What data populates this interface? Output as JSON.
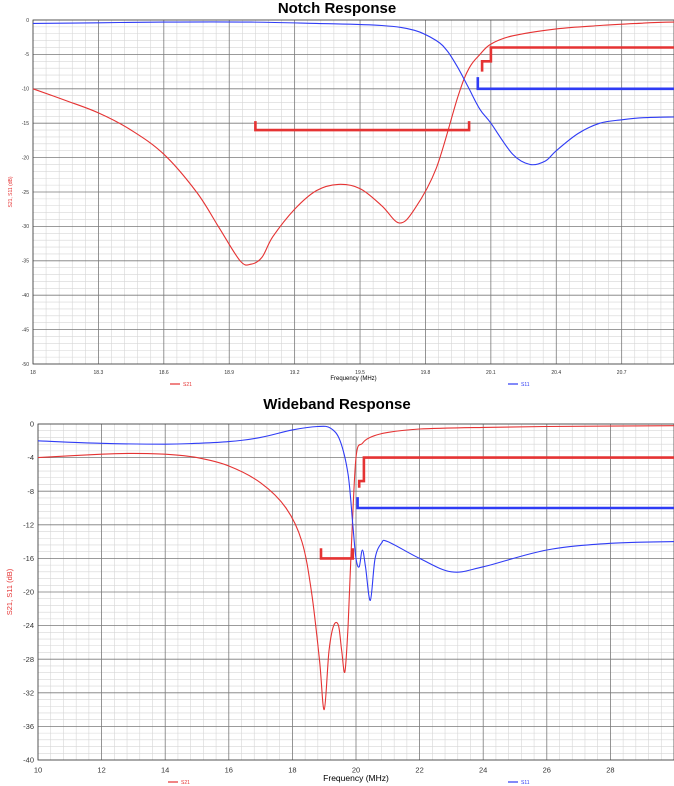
{
  "colors": {
    "s21": "#e53333",
    "s11": "#2f3cf5",
    "grid_major": "#7a7a7a",
    "grid_minor": "#d6d6d6"
  },
  "chart_data": [
    {
      "type": "line",
      "title": "Notch Response",
      "xlabel": "Frequency (MHz)",
      "ylabel": "S21, S11 (dB)",
      "xlim": [
        18,
        20.94
      ],
      "ylim": [
        -50,
        0
      ],
      "x_ticks": [
        "18",
        "18.3",
        "18.6",
        "18.9",
        "19.2",
        "19.5",
        "19.8",
        "20.1",
        "20.4",
        "20.7"
      ],
      "y_ticks": [
        "0",
        "-5",
        "-10",
        "-15",
        "-20",
        "-25",
        "-30",
        "-35",
        "-40",
        "-45",
        "-50"
      ],
      "grid": true,
      "legend": [
        "S21",
        "S11"
      ],
      "series": [
        {
          "name": "S21",
          "color": "#e53333",
          "x": [
            18.0,
            18.15,
            18.3,
            18.45,
            18.6,
            18.75,
            18.85,
            18.95,
            19.0,
            19.05,
            19.1,
            19.2,
            19.3,
            19.4,
            19.5,
            19.6,
            19.68,
            19.75,
            19.85,
            19.95,
            20.0,
            20.05,
            20.1,
            20.2,
            20.4,
            20.6,
            20.8,
            20.94
          ],
          "y": [
            -10,
            -11.7,
            -13.5,
            -16,
            -19.5,
            -25,
            -30,
            -35,
            -35.5,
            -34.5,
            -31.5,
            -27.5,
            -24.8,
            -23.9,
            -24.5,
            -27,
            -29.5,
            -27.5,
            -21.5,
            -11,
            -7,
            -5,
            -3.5,
            -2.3,
            -1.3,
            -0.8,
            -0.45,
            -0.3
          ]
        },
        {
          "name": "S11",
          "color": "#2f3cf5",
          "x": [
            18.0,
            18.3,
            18.6,
            19.0,
            19.3,
            19.6,
            19.75,
            19.85,
            19.9,
            19.95,
            20.0,
            20.05,
            20.1,
            20.2,
            20.28,
            20.35,
            20.4,
            20.5,
            20.6,
            20.7,
            20.8,
            20.94
          ],
          "y": [
            -0.5,
            -0.4,
            -0.3,
            -0.3,
            -0.5,
            -0.8,
            -1.5,
            -3,
            -4.5,
            -7,
            -10,
            -13,
            -15,
            -19.5,
            -21,
            -20.5,
            -19,
            -16.5,
            -15,
            -14.5,
            -14.2,
            -14.1
          ]
        }
      ],
      "spec_masks": [
        {
          "color": "#e53333",
          "x": [
            19.02,
            19.02,
            20.0,
            20.0
          ],
          "y": [
            -14.7,
            -16,
            -16,
            -14.7
          ]
        },
        {
          "color": "#e53333",
          "x": [
            20.06,
            20.06,
            20.1,
            20.1,
            20.94
          ],
          "y": [
            -7.5,
            -6,
            -6,
            -4,
            -4
          ]
        },
        {
          "color": "#2f3cf5",
          "x": [
            20.04,
            20.04,
            20.94
          ],
          "y": [
            -8.3,
            -10,
            -10
          ]
        }
      ]
    },
    {
      "type": "line",
      "title": "Wideband Response",
      "xlabel": "Frequency (MHz)",
      "ylabel": "S21, S11 (dB)",
      "xlim": [
        10,
        30
      ],
      "ylim": [
        -40,
        0
      ],
      "x_ticks": [
        "10",
        "12",
        "14",
        "16",
        "18",
        "20",
        "22",
        "24",
        "26",
        "28"
      ],
      "y_ticks": [
        "0",
        "-4",
        "-8",
        "-12",
        "-16",
        "-20",
        "-24",
        "-28",
        "-32",
        "-36",
        "-40"
      ],
      "grid": true,
      "legend": [
        "S21",
        "S11"
      ],
      "series": [
        {
          "name": "S21",
          "color": "#e53333",
          "x": [
            10,
            12,
            13,
            14,
            15,
            16,
            17,
            17.8,
            18.3,
            18.6,
            18.85,
            19.0,
            19.15,
            19.3,
            19.45,
            19.55,
            19.65,
            19.75,
            19.85,
            20.0,
            20.2,
            20.5,
            21,
            22,
            24,
            26,
            28,
            30
          ],
          "y": [
            -4,
            -3.6,
            -3.5,
            -3.6,
            -4,
            -5,
            -7,
            -10,
            -14,
            -20,
            -28,
            -34,
            -27,
            -24,
            -24,
            -27,
            -29.5,
            -24,
            -15,
            -4,
            -2.3,
            -1.5,
            -1,
            -0.6,
            -0.4,
            -0.3,
            -0.25,
            -0.2
          ]
        },
        {
          "name": "S11",
          "color": "#2f3cf5",
          "x": [
            10,
            12,
            14,
            15,
            16,
            17,
            18,
            18.8,
            19.2,
            19.5,
            19.75,
            19.9,
            20.0,
            20.1,
            20.2,
            20.3,
            20.45,
            20.6,
            20.8,
            21,
            22,
            23,
            24,
            26,
            28,
            30
          ],
          "y": [
            -2,
            -2.3,
            -2.4,
            -2.3,
            -2.1,
            -1.6,
            -0.7,
            -0.3,
            -0.5,
            -2,
            -6,
            -12,
            -16,
            -17,
            -15,
            -17,
            -21,
            -16,
            -14.2,
            -14,
            -16,
            -17.6,
            -17,
            -15,
            -14.2,
            -14
          ]
        }
      ],
      "spec_masks": [
        {
          "color": "#e53333",
          "x": [
            18.9,
            18.9,
            19.9,
            19.9
          ],
          "y": [
            -14.8,
            -16,
            -16,
            -14.8
          ]
        },
        {
          "color": "#e53333",
          "x": [
            20.1,
            20.1,
            20.25,
            20.25,
            30
          ],
          "y": [
            -7.6,
            -6.8,
            -6.8,
            -4,
            -4
          ]
        },
        {
          "color": "#2f3cf5",
          "x": [
            20.05,
            20.05,
            30
          ],
          "y": [
            -8.7,
            -10,
            -10
          ]
        }
      ]
    }
  ]
}
